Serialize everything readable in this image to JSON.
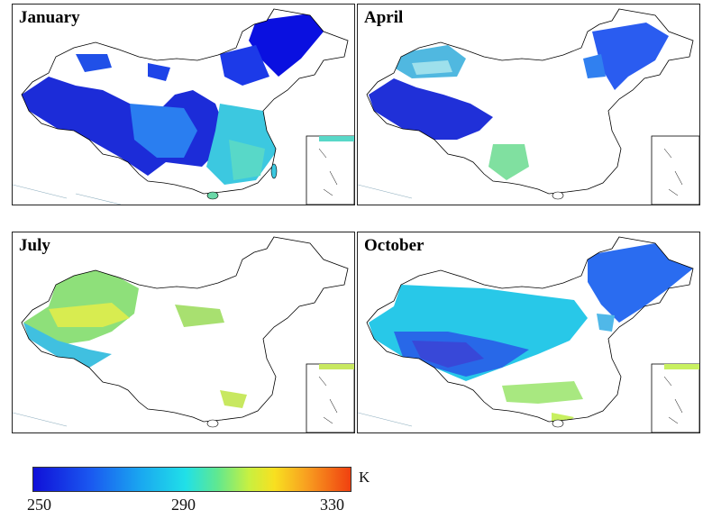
{
  "panels": [
    {
      "id": "jan",
      "title": "January"
    },
    {
      "id": "apr",
      "title": "April"
    },
    {
      "id": "jul",
      "title": "July"
    },
    {
      "id": "oct",
      "title": "October"
    }
  ],
  "colorbar": {
    "unit": "K",
    "ticks": [
      "250",
      "290",
      "330"
    ],
    "min": 250,
    "max": 330,
    "colors": [
      "#1010d8",
      "#1a58f0",
      "#1aa8f0",
      "#20e0e8",
      "#60e890",
      "#c8f040",
      "#f8e020",
      "#f8a020",
      "#f04010"
    ]
  }
}
